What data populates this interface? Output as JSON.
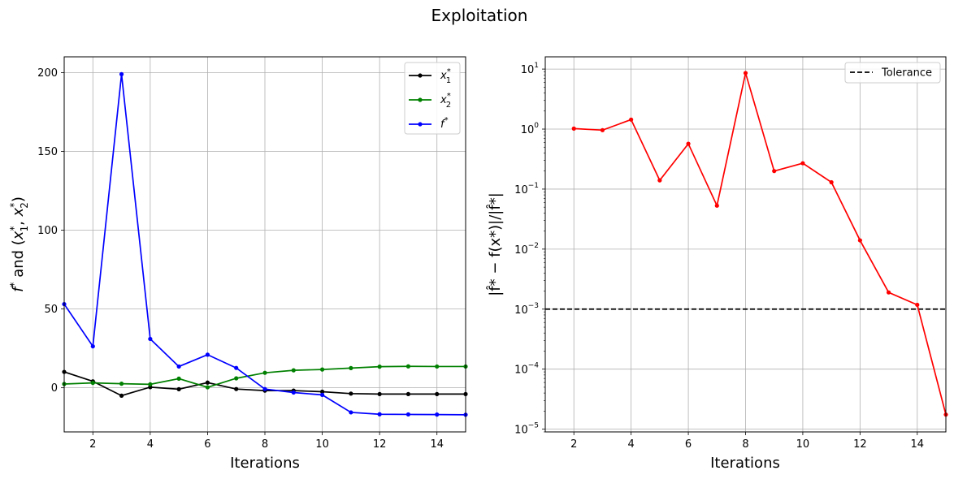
{
  "figure": {
    "title": "Exploitation"
  },
  "chart_data": [
    {
      "type": "line",
      "title": "",
      "xlabel": "Iterations",
      "ylabel": "f* and (x1*, x2*)",
      "ylabel_parts": {
        "f": "f",
        "star": "*",
        "and": " and (",
        "x": "x",
        "sub1": "1",
        "sub2": "2",
        "comma": ", ",
        "close": ")"
      },
      "x": [
        1,
        2,
        3,
        4,
        5,
        6,
        7,
        8,
        9,
        10,
        11,
        12,
        13,
        14,
        15
      ],
      "xlim": [
        1,
        15
      ],
      "ylim": [
        -28,
        210
      ],
      "xticks": [
        2,
        4,
        6,
        8,
        10,
        12,
        14
      ],
      "yticks": [
        0,
        50,
        100,
        150,
        200
      ],
      "grid": true,
      "legend_position": "top-right",
      "series": [
        {
          "name": "x1*",
          "label": {
            "base": "x",
            "sub": "1",
            "sup": "*"
          },
          "color": "#000000",
          "values": [
            10.1,
            4.1,
            -5.0,
            0.4,
            -0.9,
            3.3,
            -0.8,
            -1.8,
            -1.8,
            -2.5,
            -3.7,
            -4.0,
            -4.0,
            -4.0,
            -4.0
          ]
        },
        {
          "name": "x2*",
          "label": {
            "base": "x",
            "sub": "2",
            "sup": "*"
          },
          "color": "#008000",
          "values": [
            2.4,
            3.1,
            2.6,
            2.2,
            5.8,
            0.3,
            6.0,
            9.5,
            11.1,
            11.6,
            12.5,
            13.4,
            13.6,
            13.5,
            13.5
          ]
        },
        {
          "name": "f*",
          "label": {
            "base": "f",
            "sub": "",
            "sup": "*"
          },
          "color": "#0000ff",
          "values": [
            53.1,
            26.3,
            199.0,
            31.0,
            13.5,
            21.0,
            12.6,
            -0.8,
            -3.0,
            -4.5,
            -15.6,
            -16.8,
            -16.9,
            -17.0,
            -17.1
          ]
        }
      ]
    },
    {
      "type": "line",
      "title": "",
      "xlabel": "Iterations",
      "ylabel": "|f̂* − f(x*)|/|f̂*|",
      "yscale": "log",
      "x": [
        2,
        3,
        4,
        5,
        6,
        7,
        8,
        9,
        10,
        11,
        12,
        13,
        14,
        15
      ],
      "xlim": [
        1,
        15
      ],
      "ylim": [
        9e-06,
        16
      ],
      "xticks": [
        2,
        4,
        6,
        8,
        10,
        12,
        14
      ],
      "yticks": [
        {
          "value": 10,
          "base": "10",
          "exp": "1"
        },
        {
          "value": 1,
          "base": "10",
          "exp": "0"
        },
        {
          "value": 0.1,
          "base": "10",
          "exp": "−1"
        },
        {
          "value": 0.01,
          "base": "10",
          "exp": "−2"
        },
        {
          "value": 0.001,
          "base": "10",
          "exp": "−3"
        },
        {
          "value": 0.0001,
          "base": "10",
          "exp": "−4"
        },
        {
          "value": 1e-05,
          "base": "10",
          "exp": "−5"
        }
      ],
      "grid": true,
      "legend_position": "top-right",
      "series": [
        {
          "name": "",
          "color": "#ff0000",
          "values": [
            1.02,
            0.96,
            1.44,
            0.14,
            0.57,
            0.053,
            8.6,
            0.2,
            0.27,
            0.13,
            0.014,
            0.0019,
            0.00118,
            1.75e-05
          ]
        }
      ],
      "reference_lines": [
        {
          "name": "Tolerance",
          "y": 0.001,
          "color": "#000000",
          "style": "dashed"
        }
      ]
    }
  ]
}
